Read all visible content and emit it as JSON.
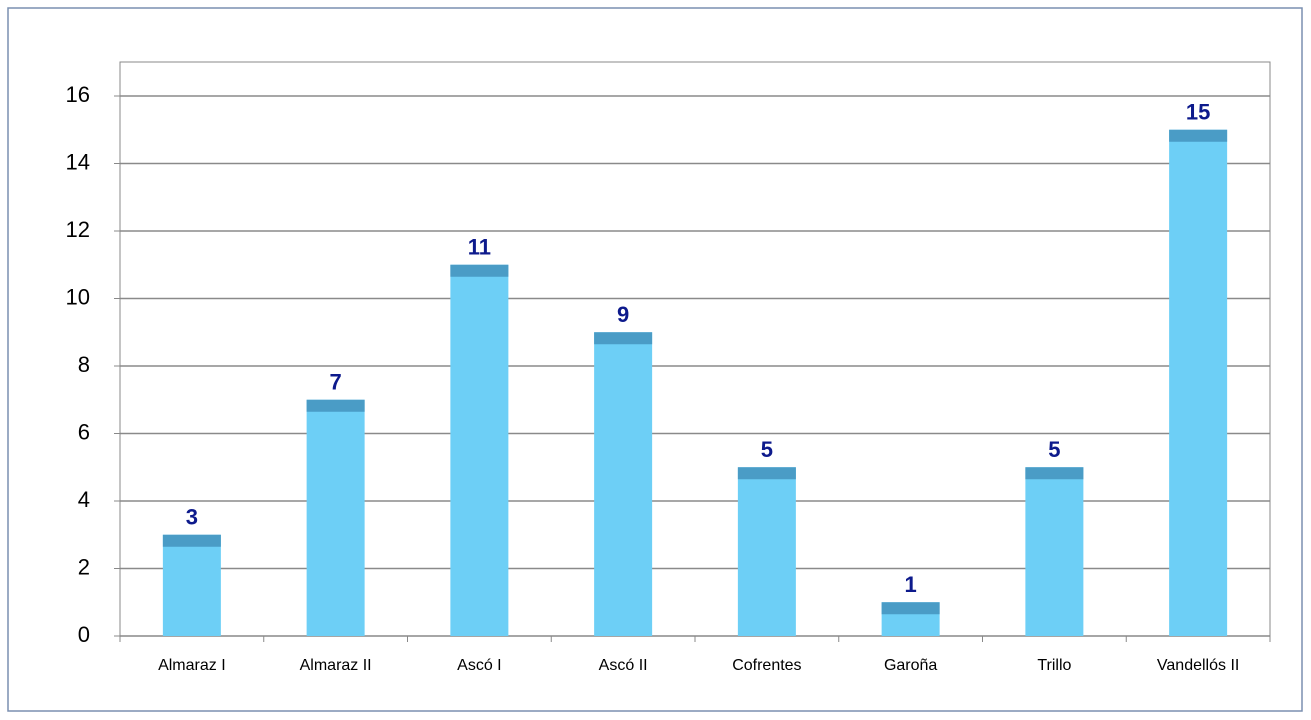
{
  "chart_data": {
    "type": "bar",
    "categories": [
      "Almaraz I",
      "Almaraz II",
      "Ascó I",
      "Ascó II",
      "Cofrentes",
      "Garoña",
      "Trillo",
      "Vandellós II"
    ],
    "values": [
      3,
      7,
      11,
      9,
      5,
      1,
      5,
      15
    ],
    "color": "#6dcff6",
    "ylim": [
      0,
      16
    ],
    "yticks": [
      0,
      2,
      4,
      6,
      8,
      10,
      12,
      14,
      16
    ],
    "grid": true
  }
}
